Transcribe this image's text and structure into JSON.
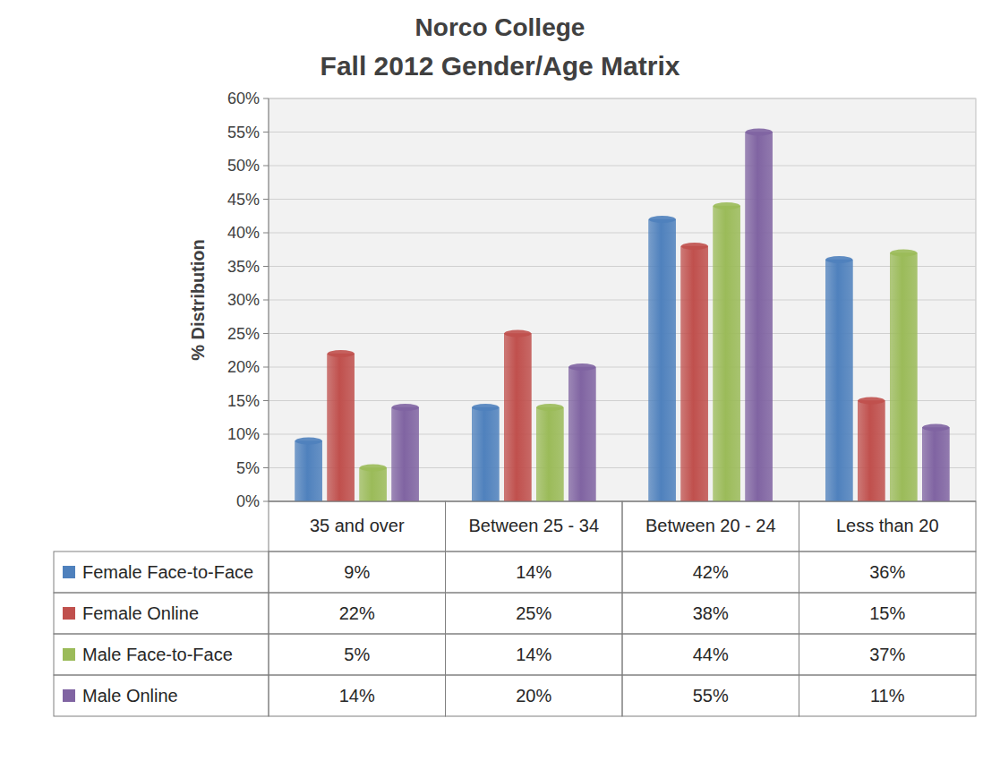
{
  "chart_data": {
    "type": "bar",
    "title": "Norco College",
    "subtitle": "Fall 2012 Gender/Age Matrix",
    "y_label": "% Distribution",
    "categories": [
      "35 and over",
      "Between 25 - 34",
      "Between 20 - 24",
      "Less than 20"
    ],
    "series": [
      {
        "name": "Female Face-to-Face",
        "color": "#4f81bd",
        "values": [
          9,
          14,
          42,
          36
        ],
        "value_labels": [
          "9%",
          "14%",
          "42%",
          "36%"
        ]
      },
      {
        "name": "Female Online",
        "color": "#c0504d",
        "values": [
          22,
          25,
          38,
          15
        ],
        "value_labels": [
          "22%",
          "25%",
          "38%",
          "15%"
        ]
      },
      {
        "name": "Male Face-to-Face",
        "color": "#9bbb59",
        "values": [
          5,
          14,
          44,
          37
        ],
        "value_labels": [
          "5%",
          "14%",
          "44%",
          "37%"
        ]
      },
      {
        "name": "Male Online",
        "color": "#8064a2",
        "values": [
          14,
          20,
          55,
          11
        ],
        "value_labels": [
          "14%",
          "20%",
          "55%",
          "11%"
        ]
      }
    ],
    "ylim": [
      0,
      60
    ],
    "yticks": [
      {
        "value": 0,
        "label": "0%"
      },
      {
        "value": 5,
        "label": "5%"
      },
      {
        "value": 10,
        "label": "10%"
      },
      {
        "value": 15,
        "label": "15%"
      },
      {
        "value": 20,
        "label": "20%"
      },
      {
        "value": 25,
        "label": "25%"
      },
      {
        "value": 30,
        "label": "30%"
      },
      {
        "value": 35,
        "label": "35%"
      },
      {
        "value": 40,
        "label": "40%"
      },
      {
        "value": 45,
        "label": "45%"
      },
      {
        "value": 50,
        "label": "50%"
      },
      {
        "value": 55,
        "label": "55%"
      },
      {
        "value": 60,
        "label": "60%"
      }
    ],
    "grid": true,
    "data_labels": true,
    "legend": "bottom"
  }
}
